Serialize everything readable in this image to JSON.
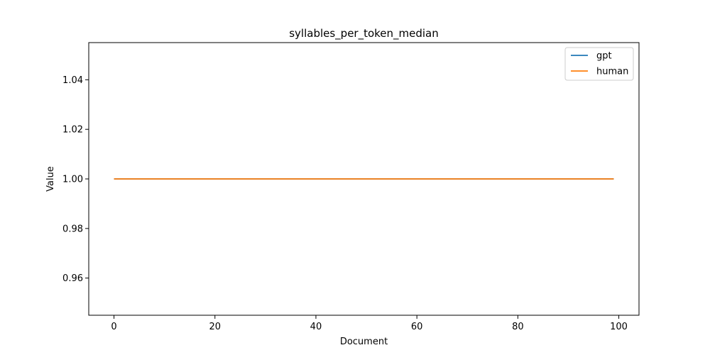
{
  "chart_data": {
    "type": "line",
    "title": "syllables_per_token_median",
    "xlabel": "Document",
    "ylabel": "Value",
    "xlim": [
      -5,
      104
    ],
    "ylim": [
      0.945,
      1.055
    ],
    "x_ticks": [
      0,
      20,
      40,
      60,
      80,
      100
    ],
    "y_ticks": [
      0.96,
      0.98,
      1.0,
      1.02,
      1.04
    ],
    "x_tick_labels": [
      "0",
      "20",
      "40",
      "60",
      "80",
      "100"
    ],
    "y_tick_labels": [
      "0.96",
      "0.98",
      "1.00",
      "1.02",
      "1.04"
    ],
    "grid": false,
    "legend": {
      "position": "top-right",
      "entries": [
        "gpt",
        "human"
      ]
    },
    "series": [
      {
        "name": "gpt",
        "color": "#1f77b4",
        "x": [
          0,
          99
        ],
        "y": [
          1.0,
          1.0
        ]
      },
      {
        "name": "human",
        "color": "#ff7f0e",
        "x": [
          0,
          99
        ],
        "y": [
          1.0,
          1.0
        ]
      }
    ]
  }
}
